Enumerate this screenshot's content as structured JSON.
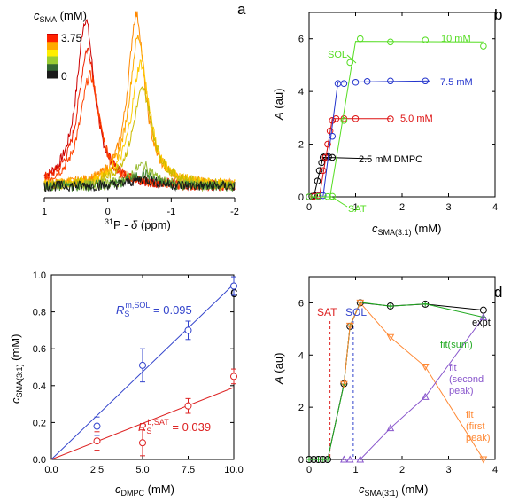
{
  "chart_data": [
    {
      "panel": "a",
      "type": "line",
      "xlabel_prefix": "31",
      "xlabel_main": "P - ",
      "xlabel_delta": "δ",
      "xlabel_unit": " (ppm)",
      "xlim": [
        1,
        -2
      ],
      "xticks": [
        "1",
        "0",
        "-1",
        "-2"
      ],
      "colorbar": {
        "label_c": "c",
        "label_sub": "SMA",
        "label_unit": " (mM)",
        "max_label": "3.75",
        "min_label": "0",
        "colors": [
          "#1a1a1a",
          "#336633",
          "#99cc33",
          "#ffee00",
          "#ffaa00",
          "#ff2200",
          "#cc0000"
        ]
      },
      "series": [
        {
          "color": "#cc0000",
          "center": 0.35,
          "height": 0.95,
          "width": 0.17
        },
        {
          "color": "#ee2200",
          "center": 0.32,
          "height": 0.78,
          "width": 0.18
        },
        {
          "color": "#ff4400",
          "center": 0.28,
          "height": 0.63,
          "width": 0.19
        },
        {
          "color": "#ff8800",
          "center": -0.45,
          "height": 0.98,
          "width": 0.16
        },
        {
          "color": "#ffaa00",
          "center": -0.48,
          "height": 0.85,
          "width": 0.17
        },
        {
          "color": "#ffcc00",
          "center": -0.52,
          "height": 0.7,
          "width": 0.18
        },
        {
          "color": "#ccbb00",
          "center": -0.55,
          "height": 0.55,
          "width": 0.19
        },
        {
          "color": "#99bb33",
          "center": -0.55,
          "height": 0.12,
          "width": 0.2
        },
        {
          "color": "#448833",
          "center": -0.55,
          "height": 0.07,
          "width": 0.22
        },
        {
          "color": "#1a1a1a",
          "center": -0.55,
          "height": 0.04,
          "width": 0.25
        }
      ]
    },
    {
      "panel": "b",
      "type": "line",
      "ylabel": "A (au)",
      "xlabel_c": "c",
      "xlabel_sub": "SMA(3:1)",
      "xlabel_unit": " (mM)",
      "xlim": [
        0,
        4
      ],
      "ylim": [
        0,
        7
      ],
      "xticks": [
        0,
        1,
        2,
        3,
        4
      ],
      "yticks": [
        0,
        2,
        4,
        6
      ],
      "series": [
        {
          "name": "2.5 mM DMPC",
          "color": "#000000",
          "points": [
            [
              0.0,
              0.0
            ],
            [
              0.06,
              0.02
            ],
            [
              0.12,
              0.05
            ],
            [
              0.18,
              0.6
            ],
            [
              0.22,
              1.0
            ],
            [
              0.27,
              1.3
            ],
            [
              0.3,
              1.5
            ],
            [
              0.35,
              1.55
            ],
            [
              0.42,
              1.52
            ],
            [
              0.5,
              1.5
            ]
          ],
          "fit": [
            [
              0,
              0
            ],
            [
              0.1,
              0
            ],
            [
              0.3,
              1.5
            ],
            [
              1.3,
              1.45
            ]
          ]
        },
        {
          "name": "5.0 mM",
          "color": "#dd1111",
          "points": [
            [
              0.0,
              0.0
            ],
            [
              0.1,
              0.02
            ],
            [
              0.2,
              0.05
            ],
            [
              0.3,
              1.0
            ],
            [
              0.35,
              1.5
            ],
            [
              0.4,
              2.0
            ],
            [
              0.45,
              2.5
            ],
            [
              0.5,
              2.9
            ],
            [
              0.58,
              2.97
            ],
            [
              0.75,
              2.97
            ],
            [
              1.0,
              2.97
            ],
            [
              1.75,
              2.96
            ]
          ],
          "fit": [
            [
              0,
              0
            ],
            [
              0.22,
              0
            ],
            [
              0.5,
              2.97
            ],
            [
              1.75,
              2.97
            ]
          ]
        },
        {
          "name": "7.5 mM",
          "color": "#2233cc",
          "points": [
            [
              0.0,
              0.0
            ],
            [
              0.2,
              0.02
            ],
            [
              0.3,
              0.05
            ],
            [
              0.5,
              2.3
            ],
            [
              0.62,
              4.3
            ],
            [
              0.75,
              4.3
            ],
            [
              1.0,
              4.35
            ],
            [
              1.25,
              4.38
            ],
            [
              1.75,
              4.4
            ],
            [
              2.5,
              4.4
            ]
          ],
          "fit": [
            [
              0,
              0
            ],
            [
              0.3,
              0
            ],
            [
              0.62,
              4.35
            ],
            [
              2.6,
              4.4
            ]
          ]
        },
        {
          "name": "10 mM",
          "color": "#55dd22",
          "points": [
            [
              0.0,
              0.0
            ],
            [
              0.2,
              0.01
            ],
            [
              0.4,
              0.01
            ],
            [
              0.5,
              0.02
            ],
            [
              0.75,
              2.9
            ],
            [
              0.88,
              5.1
            ],
            [
              1.1,
              6.0
            ],
            [
              1.75,
              5.88
            ],
            [
              2.5,
              5.95
            ],
            [
              3.75,
              5.72
            ]
          ],
          "fit": [
            [
              0,
              0
            ],
            [
              0.45,
              0
            ],
            [
              1.0,
              5.9
            ],
            [
              3.75,
              5.88
            ]
          ]
        }
      ],
      "annotations": {
        "sol": "SOL",
        "sat": "SAT"
      }
    },
    {
      "panel": "c",
      "type": "scatter",
      "xlabel_c": "c",
      "xlabel_sub": "DMPC",
      "xlabel_unit": " (mM)",
      "ylabel_c": "c",
      "ylabel_sub": "SMA(3:1)",
      "ylabel_unit": " (mM)",
      "xlim": [
        0,
        10
      ],
      "ylim": [
        0,
        1
      ],
      "xticks": [
        "0.0",
        "2.5",
        "5.0",
        "7.5",
        "10.0"
      ],
      "yticks": [
        "0.0",
        "0.2",
        "0.4",
        "0.6",
        "0.8",
        "1.0"
      ],
      "series": [
        {
          "name": "SOL",
          "color": "#3344cc",
          "points": [
            [
              2.5,
              0.18
            ],
            [
              5.0,
              0.51
            ],
            [
              7.5,
              0.7
            ],
            [
              10.0,
              0.94
            ]
          ],
          "errors": [
            0.05,
            0.09,
            0.05,
            0.05
          ],
          "fit_slope": 0.095,
          "label_R": "R",
          "label_sub": "S",
          "label_sup": "m,SOL",
          "label_val": " = 0.095"
        },
        {
          "name": "SAT",
          "color": "#dd2222",
          "points": [
            [
              2.5,
              0.1
            ],
            [
              5.0,
              0.09
            ],
            [
              7.5,
              0.29
            ],
            [
              10.0,
              0.45
            ]
          ],
          "errors": [
            0.05,
            0.07,
            0.04,
            0.04
          ],
          "fit_slope": 0.039,
          "label_R": "R",
          "label_sub": "S",
          "label_sup": "b,SAT",
          "label_val": " = 0.039"
        }
      ]
    },
    {
      "panel": "d",
      "type": "line",
      "ylabel": "A (au)",
      "xlabel_c": "c",
      "xlabel_sub": "SMA(3:1)",
      "xlabel_unit": " (mM)",
      "xlim": [
        0,
        4
      ],
      "ylim": [
        0,
        7
      ],
      "xticks": [
        0,
        1,
        2,
        3,
        4
      ],
      "yticks": [
        0,
        2,
        4,
        6
      ],
      "vlines": [
        {
          "label": "SAT",
          "x": 0.45,
          "color": "#dd2222"
        },
        {
          "label": "SOL",
          "x": 0.95,
          "color": "#3344cc"
        }
      ],
      "series": [
        {
          "name": "expt",
          "color": "#000000",
          "marker": "circle",
          "points": [
            [
              0,
              0
            ],
            [
              0.1,
              0
            ],
            [
              0.2,
              0
            ],
            [
              0.3,
              0
            ],
            [
              0.4,
              0
            ],
            [
              0.75,
              2.9
            ],
            [
              0.88,
              5.1
            ],
            [
              1.1,
              6.0
            ],
            [
              1.75,
              5.88
            ],
            [
              2.5,
              5.95
            ],
            [
              3.75,
              5.72
            ]
          ]
        },
        {
          "name": "fit(sum)",
          "color": "#22aa22",
          "marker": "plus",
          "points": [
            [
              0,
              0
            ],
            [
              0.1,
              0
            ],
            [
              0.2,
              0
            ],
            [
              0.3,
              0
            ],
            [
              0.4,
              0
            ],
            [
              0.75,
              2.88
            ],
            [
              0.88,
              5.12
            ],
            [
              1.1,
              6.02
            ],
            [
              1.75,
              5.87
            ],
            [
              2.5,
              5.96
            ],
            [
              3.75,
              5.45
            ]
          ]
        },
        {
          "name": "fit (first peak)",
          "color": "#ff8833",
          "marker": "triangle-down",
          "points": [
            [
              0.75,
              2.88
            ],
            [
              0.88,
              5.12
            ],
            [
              1.1,
              6.0
            ],
            [
              1.75,
              4.68
            ],
            [
              2.5,
              3.55
            ],
            [
              3.75,
              0.0
            ]
          ]
        },
        {
          "name": "fit (second peak)",
          "color": "#8855cc",
          "marker": "triangle-up",
          "points": [
            [
              0.75,
              0
            ],
            [
              0.88,
              0
            ],
            [
              1.1,
              0
            ],
            [
              1.75,
              1.2
            ],
            [
              2.5,
              2.4
            ],
            [
              3.75,
              5.45
            ]
          ]
        }
      ]
    }
  ],
  "panel_labels": {
    "a": "a",
    "b": "b",
    "c": "c",
    "d": "d"
  },
  "legend_b": {
    "ten": "10 mM",
    "sevenfive": "7.5 mM",
    "five": "5.0 mM",
    "dmpc": "2.5 mM DMPC"
  },
  "legend_d": {
    "expt": "expt",
    "fitsum": "fit(sum)",
    "second_1": "fit",
    "second_2": "(second",
    "second_3": "peak)",
    "first_1": "fit",
    "first_2": "(first",
    "first_3": "peak)",
    "sat": "SAT",
    "sol": "SOL"
  }
}
